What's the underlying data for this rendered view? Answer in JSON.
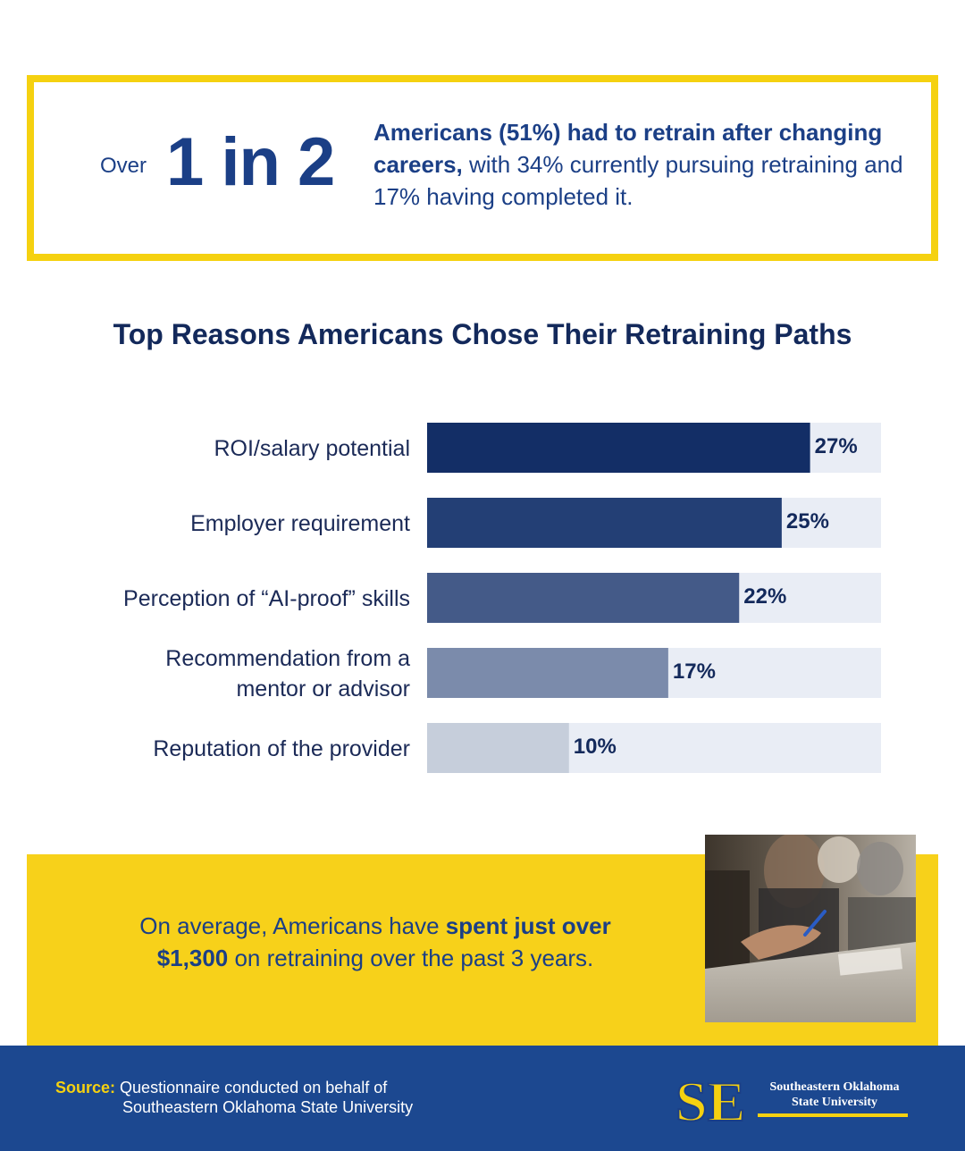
{
  "stat": {
    "over": "Over",
    "big": "1 in 2",
    "bold": "Americans (51%) had to retrain after changing careers,",
    "rest": " with 34% currently pursuing retraining and 17% having completed it."
  },
  "chart_data": {
    "type": "bar",
    "orientation": "horizontal",
    "title": "Top Reasons Americans Chose Their Retraining Paths",
    "categories": [
      [
        "ROI/salary potential"
      ],
      [
        "Employer requirement"
      ],
      [
        "Perception of “AI-proof” skills"
      ],
      [
        "Recommendation from a",
        "mentor or advisor"
      ],
      [
        "Reputation of the provider"
      ]
    ],
    "values": [
      27,
      25,
      22,
      17,
      10
    ],
    "value_labels": [
      "27%",
      "25%",
      "22%",
      "17%",
      "10%"
    ],
    "xlim": [
      0,
      32
    ],
    "bar_colors": [
      "#132e66",
      "#233f75",
      "#445a88",
      "#7b8bab",
      "#c6cedb"
    ],
    "track_color": "#e9edf5",
    "grid": false,
    "legend": "none"
  },
  "callout": {
    "pre": "On average, Americans have ",
    "bold": "spent just over $1,300",
    "post": " on retraining over the past 3 years."
  },
  "footer": {
    "source_label": "Source:",
    "source_line1": "Questionnaire conducted on behalf of",
    "source_line2": "Southeastern Oklahoma State University",
    "logo_line1": "Southeastern Oklahoma",
    "logo_line2": "State University",
    "logo_monogram": "SE"
  },
  "colors": {
    "yellow": "#f5d110",
    "navy": "#1b3f86",
    "footer_blue": "#1c4890"
  }
}
